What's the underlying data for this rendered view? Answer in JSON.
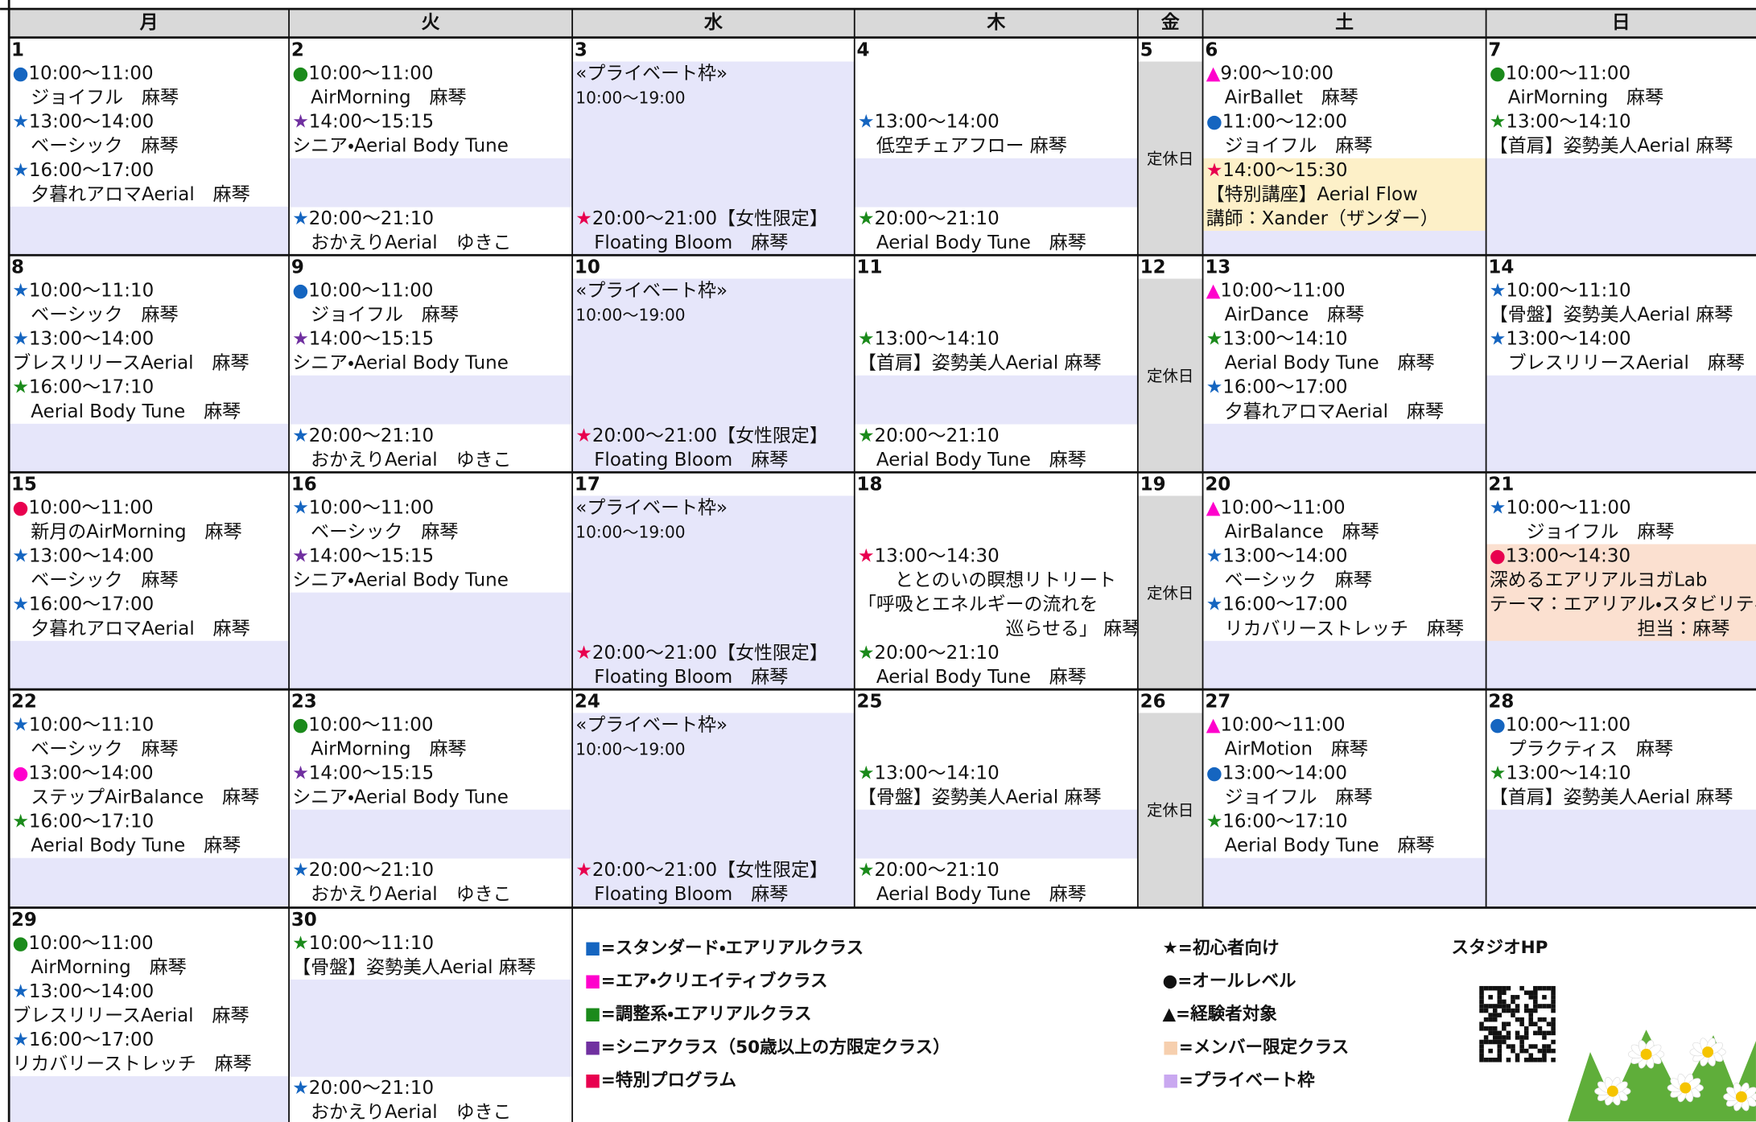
{
  "header": {
    "days": [
      {
        "label": "月",
        "color": "#111111"
      },
      {
        "label": "火",
        "color": "#111111"
      },
      {
        "label": "水",
        "color": "#111111"
      },
      {
        "label": "木",
        "color": "#111111"
      },
      {
        "label": "金",
        "color": "#111111"
      },
      {
        "label": "土",
        "color": "#1f2a7a"
      },
      {
        "label": "日",
        "color": "#b0002a"
      }
    ]
  },
  "weeks": [
    {
      "cells": [
        {
          "date": "1",
          "lines": [
            {
              "mark": "●",
              "mark_color": "#1565c0",
              "text": "10:00～11:00"
            },
            "　ジョイフル　麻琴",
            {
              "mark": "★",
              "mark_color": "#1565c0",
              "text": "13:00～14:00"
            },
            "　ベーシック　麻琴",
            {
              "mark": "★",
              "mark_color": "#1565c0",
              "text": "16:00～17:00"
            },
            "　夕暮れアロマAerial　麻琴",
            null,
            null
          ]
        },
        {
          "date": "2",
          "lines": [
            {
              "mark": "●",
              "mark_color": "#1b8a1b",
              "text": "10:00～11:00"
            },
            "　AirMorning　麻琴",
            {
              "mark": "★",
              "mark_color": "#7030a0",
              "text": "14:00～15:15"
            },
            " シニア・Aerial Body Tune",
            null,
            null,
            {
              "mark": "★",
              "mark_color": "#1565c0",
              "text": "20:00～21:10"
            },
            "　おかえりAerial　ゆきこ"
          ]
        },
        {
          "date": "3",
          "kind": "private",
          "lines": [
            "«プライベート枠»",
            "10:00～19:00",
            null,
            null,
            null,
            null,
            {
              "mark": "★",
              "mark_color": "#e8004f",
              "text": "20:00～21:00【女性限定】"
            },
            "　Floating Bloom　麻琴"
          ]
        },
        {
          "date": "4",
          "lines": [
            null,
            null,
            {
              "mark": "★",
              "mark_color": "#1565c0",
              "text": "13:00～14:00"
            },
            "　低空チェアフロー 麻琴",
            null,
            null,
            {
              "mark": "★",
              "mark_color": "#1b8a1b",
              "text": "20:00～21:10"
            },
            "　Aerial Body Tune　麻琴"
          ]
        },
        {
          "date": "5",
          "closed": "定休日"
        },
        {
          "date": "6",
          "lines": [
            {
              "mark": "▲",
              "mark_color": "#ff00cc",
              "text": "9:00～10:00"
            },
            "　AirBallet　麻琴",
            {
              "mark": "●",
              "mark_color": "#1565c0",
              "text": "11:00～12:00"
            },
            "　ジョイフル　麻琴",
            {
              "mark": "★",
              "mark_color": "#e8004f",
              "text": "14:00～15:30",
              "bg": "#fdf0c8"
            },
            {
              "text": "【特別講座】Aerial Flow",
              "bg": "#fdf0c8"
            },
            {
              "text": "講師：Xander（ザンダー）",
              "bg": "#fdf0c8"
            },
            null
          ]
        },
        {
          "date": "7",
          "lines": [
            {
              "mark": "●",
              "mark_color": "#1b8a1b",
              "text": "10:00～11:00"
            },
            "　AirMorning　麻琴",
            {
              "mark": "★",
              "mark_color": "#1b8a1b",
              "text": "13:00～14:10"
            },
            "【首肩】姿勢美人Aerial 麻琴",
            null,
            null,
            null,
            null
          ]
        }
      ]
    },
    {
      "cells": [
        {
          "date": "8",
          "lines": [
            {
              "mark": "★",
              "mark_color": "#1565c0",
              "text": "10:00～11:10"
            },
            "　ベーシック　麻琴",
            {
              "mark": "★",
              "mark_color": "#1565c0",
              "text": "13:00～14:00"
            },
            "ブレスリリースAerial　麻琴",
            {
              "mark": "★",
              "mark_color": "#1b8a1b",
              "text": "16:00～17:10"
            },
            "　Aerial Body Tune　麻琴",
            null,
            null
          ]
        },
        {
          "date": "9",
          "lines": [
            {
              "mark": "●",
              "mark_color": "#1565c0",
              "text": "10:00～11:00"
            },
            "　ジョイフル　麻琴",
            {
              "mark": "★",
              "mark_color": "#7030a0",
              "text": "14:00～15:15"
            },
            " シニア・Aerial Body Tune",
            null,
            null,
            {
              "mark": "★",
              "mark_color": "#1565c0",
              "text": "20:00～21:10"
            },
            "　おかえりAerial　ゆきこ"
          ]
        },
        {
          "date": "10",
          "kind": "private",
          "lines": [
            "«プライベート枠»",
            "10:00～19:00",
            null,
            null,
            null,
            null,
            {
              "mark": "★",
              "mark_color": "#e8004f",
              "text": "20:00～21:00【女性限定】"
            },
            "　Floating Bloom　麻琴"
          ]
        },
        {
          "date": "11",
          "lines": [
            null,
            null,
            {
              "mark": "★",
              "mark_color": "#1b8a1b",
              "text": "13:00～14:10"
            },
            "【首肩】姿勢美人Aerial 麻琴",
            null,
            null,
            {
              "mark": "★",
              "mark_color": "#1b8a1b",
              "text": "20:00～21:10"
            },
            "　Aerial Body Tune　麻琴"
          ]
        },
        {
          "date": "12",
          "closed": "定休日"
        },
        {
          "date": "13",
          "lines": [
            {
              "mark": "▲",
              "mark_color": "#ff00cc",
              "text": "10:00～11:00"
            },
            "　AirDance　麻琴",
            {
              "mark": "★",
              "mark_color": "#1b8a1b",
              "text": "13:00～14:10"
            },
            "　Aerial Body Tune　麻琴",
            {
              "mark": "★",
              "mark_color": "#1565c0",
              "text": "16:00～17:00"
            },
            "　夕暮れアロマAerial　麻琴",
            null,
            null
          ]
        },
        {
          "date": "14",
          "lines": [
            {
              "mark": "★",
              "mark_color": "#1565c0",
              "text": "10:00～11:10"
            },
            "【骨盤】姿勢美人Aerial 麻琴",
            {
              "mark": "★",
              "mark_color": "#1565c0",
              "text": "13:00～14:00"
            },
            "　ブレスリリースAerial　麻琴",
            null,
            null,
            null,
            null
          ]
        }
      ]
    },
    {
      "cells": [
        {
          "date": "15",
          "lines": [
            {
              "mark": "●",
              "mark_color": "#e8004f",
              "text": "10:00～11:00"
            },
            "　新月のAirMorning　麻琴",
            {
              "mark": "★",
              "mark_color": "#1565c0",
              "text": "13:00～14:00"
            },
            "　ベーシック　麻琴",
            {
              "mark": "★",
              "mark_color": "#1565c0",
              "text": "16:00～17:00"
            },
            "　夕暮れアロマAerial　麻琴",
            null,
            null
          ]
        },
        {
          "date": "16",
          "lines": [
            {
              "mark": "★",
              "mark_color": "#1565c0",
              "text": "10:00～11:00"
            },
            "　ベーシック　麻琴",
            {
              "mark": "★",
              "mark_color": "#7030a0",
              "text": "14:00～15:15"
            },
            " シニア・Aerial Body Tune",
            null,
            null,
            null,
            null
          ]
        },
        {
          "date": "17",
          "kind": "private",
          "lines": [
            "«プライベート枠»",
            "10:00～19:00",
            null,
            null,
            null,
            null,
            {
              "mark": "★",
              "mark_color": "#e8004f",
              "text": "20:00～21:00【女性限定】"
            },
            "　Floating Bloom　麻琴"
          ]
        },
        {
          "date": "18",
          "lines": [
            null,
            null,
            {
              "mark": "★",
              "mark_color": "#e8004f",
              "text": "13:00～14:30"
            },
            "　　ととのいの瞑想リトリート",
            "「呼吸とエネルギーの流れを",
            "　　　　　　　　巡らせる」 麻琴",
            {
              "mark": "★",
              "mark_color": "#1b8a1b",
              "text": "20:00～21:10"
            },
            "　Aerial Body Tune　麻琴"
          ]
        },
        {
          "date": "19",
          "closed": "定休日"
        },
        {
          "date": "20",
          "lines": [
            {
              "mark": "▲",
              "mark_color": "#ff00cc",
              "text": "10:00～11:00"
            },
            "　AirBalance　麻琴",
            {
              "mark": "★",
              "mark_color": "#1565c0",
              "text": "13:00～14:00"
            },
            "　ベーシック　麻琴",
            {
              "mark": "★",
              "mark_color": "#1565c0",
              "text": "16:00～17:00"
            },
            "　リカバリーストレッチ　麻琴",
            null,
            null
          ]
        },
        {
          "date": "21",
          "lines": [
            {
              "mark": "★",
              "mark_color": "#1565c0",
              "text": "10:00～11:00"
            },
            "　　ジョイフル　麻琴",
            {
              "mark": "●",
              "mark_color": "#e8004f",
              "text": "13:00～14:30",
              "bg": "#fbe0d0"
            },
            {
              "text": "深めるエアリアルヨガLab",
              "bg": "#fbe0d0"
            },
            {
              "text": "テーマ：エアリアル・スタビリティ",
              "bg": "#fbe0d0"
            },
            {
              "text": "　　　　　　　　担当：麻琴",
              "bg": "#fbe0d0"
            },
            null,
            null
          ]
        }
      ]
    },
    {
      "cells": [
        {
          "date": "22",
          "lines": [
            {
              "mark": "★",
              "mark_color": "#1565c0",
              "text": "10:00～11:10"
            },
            "　ベーシック　麻琴",
            {
              "mark": "●",
              "mark_color": "#ff00cc",
              "text": "13:00～14:00"
            },
            "　ステップAirBalance　麻琴",
            {
              "mark": "★",
              "mark_color": "#1b8a1b",
              "text": "16:00～17:10"
            },
            "　Aerial Body Tune　麻琴",
            null,
            null
          ]
        },
        {
          "date": "23",
          "lines": [
            {
              "mark": "●",
              "mark_color": "#1b8a1b",
              "text": "10:00～11:00"
            },
            "　AirMorning　麻琴",
            {
              "mark": "★",
              "mark_color": "#7030a0",
              "text": "14:00～15:15"
            },
            " シニア・Aerial Body Tune",
            null,
            null,
            {
              "mark": "★",
              "mark_color": "#1565c0",
              "text": "20:00～21:10"
            },
            "　おかえりAerial　ゆきこ"
          ]
        },
        {
          "date": "24",
          "kind": "private",
          "lines": [
            "«プライベート枠»",
            "10:00～19:00",
            null,
            null,
            null,
            null,
            {
              "mark": "★",
              "mark_color": "#e8004f",
              "text": "20:00～21:00【女性限定】"
            },
            "　Floating Bloom　麻琴"
          ]
        },
        {
          "date": "25",
          "lines": [
            null,
            null,
            {
              "mark": "★",
              "mark_color": "#1b8a1b",
              "text": "13:00～14:10"
            },
            "【骨盤】姿勢美人Aerial 麻琴",
            null,
            null,
            {
              "mark": "★",
              "mark_color": "#1b8a1b",
              "text": "20:00～21:10"
            },
            "　Aerial Body Tune　麻琴"
          ]
        },
        {
          "date": "26",
          "closed": "定休日"
        },
        {
          "date": "27",
          "lines": [
            {
              "mark": "▲",
              "mark_color": "#ff00cc",
              "text": "10:00～11:00"
            },
            "　AirMotion　麻琴",
            {
              "mark": "●",
              "mark_color": "#1565c0",
              "text": "13:00～14:00"
            },
            "　ジョイフル　麻琴",
            {
              "mark": "★",
              "mark_color": "#1b8a1b",
              "text": "16:00～17:10"
            },
            "　Aerial Body Tune　麻琴",
            null,
            null
          ]
        },
        {
          "date": "28",
          "lines": [
            {
              "mark": "●",
              "mark_color": "#1565c0",
              "text": "10:00～11:00"
            },
            "　プラクティス　麻琴",
            {
              "mark": "★",
              "mark_color": "#1b8a1b",
              "text": "13:00～14:10"
            },
            "【首肩】姿勢美人Aerial 麻琴",
            null,
            null,
            null,
            null
          ]
        }
      ]
    },
    {
      "cells": [
        {
          "date": "29",
          "lines": [
            {
              "mark": "●",
              "mark_color": "#1b8a1b",
              "text": "10:00～11:00"
            },
            "　AirMorning　麻琴",
            {
              "mark": "★",
              "mark_color": "#1565c0",
              "text": "13:00～14:00"
            },
            "ブレスリリースAerial　麻琴",
            {
              "mark": "★",
              "mark_color": "#1565c0",
              "text": "16:00～17:00"
            },
            "リカバリーストレッチ　麻琴",
            null,
            null
          ]
        },
        {
          "date": "30",
          "lines": [
            {
              "mark": "★",
              "mark_color": "#1b8a1b",
              "text": "10:00～11:10"
            },
            "【骨盤】姿勢美人Aerial 麻琴",
            null,
            null,
            null,
            null,
            {
              "mark": "★",
              "mark_color": "#1565c0",
              "text": "20:00～21:10"
            },
            "　おかえりAerial　ゆきこ"
          ]
        }
      ]
    }
  ],
  "legend": {
    "classes": [
      {
        "symbol": "■",
        "color": "#1565c0",
        "text": "=スタンダード・エアリアルクラス"
      },
      {
        "symbol": "■",
        "color": "#ff00cc",
        "text": "=エア・クリエイティブクラス"
      },
      {
        "symbol": "■",
        "color": "#1b8a1b",
        "text": "=調整系・エアリアルクラス"
      },
      {
        "symbol": "■",
        "color": "#7030a0",
        "text": "=シニアクラス（50歳以上の方限定クラス）"
      },
      {
        "symbol": "■",
        "color": "#e8004f",
        "text": "=特別プログラム"
      }
    ],
    "levels": [
      {
        "symbol": "★",
        "color": "#111111",
        "text": "=初心者向け"
      },
      {
        "symbol": "●",
        "color": "#111111",
        "text": "=オールレベル"
      },
      {
        "symbol": "▲",
        "color": "#111111",
        "text": "=経験者対象"
      },
      {
        "symbol": "■",
        "color": "#f6cfae",
        "text": "=メンバー限定クラス"
      },
      {
        "symbol": "■",
        "color": "#c9a8f0",
        "text": "=プライベート枠"
      }
    ],
    "studio_hp": "スタジオHP"
  }
}
